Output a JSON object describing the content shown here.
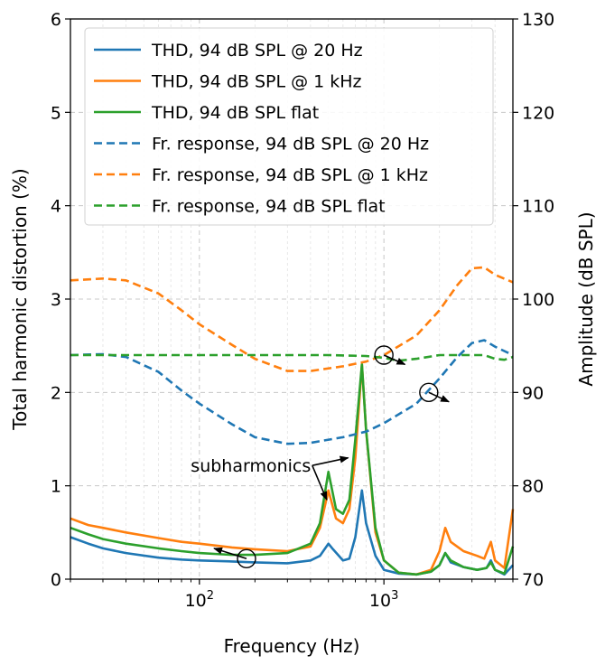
{
  "chart_data": {
    "type": "line",
    "xlabel": "Frequency (Hz)",
    "ylabel_left": "Total harmonic distortion (%)",
    "ylabel_right": "Amplitude (dB SPL)",
    "x_scale": "log",
    "xlim": [
      20,
      5000
    ],
    "ylim_left": [
      0,
      6
    ],
    "ylim_right": [
      70,
      130
    ],
    "x_ticks": [
      100,
      1000
    ],
    "y_ticks_left": [
      0,
      1,
      2,
      3,
      4,
      5,
      6
    ],
    "y_ticks_right": [
      70,
      80,
      90,
      100,
      110,
      120,
      130
    ],
    "grid": true,
    "legend_position": "top-left",
    "colors": {
      "blue": "#1f77b4",
      "orange": "#ff7f0e",
      "green": "#2ca02c"
    },
    "series": [
      {
        "name": "THD, 94 dB SPL @ 20 Hz",
        "axis": "left",
        "style": "solid",
        "color": "#1f77b4",
        "points": [
          [
            20,
            0.45
          ],
          [
            25,
            0.38
          ],
          [
            30,
            0.33
          ],
          [
            40,
            0.28
          ],
          [
            60,
            0.23
          ],
          [
            80,
            0.21
          ],
          [
            100,
            0.2
          ],
          [
            150,
            0.19
          ],
          [
            200,
            0.18
          ],
          [
            300,
            0.17
          ],
          [
            400,
            0.2
          ],
          [
            450,
            0.25
          ],
          [
            500,
            0.38
          ],
          [
            530,
            0.32
          ],
          [
            600,
            0.2
          ],
          [
            650,
            0.22
          ],
          [
            700,
            0.45
          ],
          [
            760,
            0.95
          ],
          [
            800,
            0.6
          ],
          [
            900,
            0.25
          ],
          [
            1000,
            0.1
          ],
          [
            1200,
            0.06
          ],
          [
            1500,
            0.05
          ],
          [
            1800,
            0.08
          ],
          [
            2000,
            0.15
          ],
          [
            2150,
            0.28
          ],
          [
            2300,
            0.18
          ],
          [
            2700,
            0.13
          ],
          [
            3200,
            0.1
          ],
          [
            3600,
            0.12
          ],
          [
            3800,
            0.2
          ],
          [
            4000,
            0.1
          ],
          [
            4500,
            0.05
          ],
          [
            5000,
            0.15
          ]
        ]
      },
      {
        "name": "THD, 94 dB SPL @ 1 kHz",
        "axis": "left",
        "style": "solid",
        "color": "#ff7f0e",
        "points": [
          [
            20,
            0.65
          ],
          [
            25,
            0.58
          ],
          [
            30,
            0.55
          ],
          [
            40,
            0.5
          ],
          [
            60,
            0.44
          ],
          [
            80,
            0.4
          ],
          [
            100,
            0.38
          ],
          [
            150,
            0.34
          ],
          [
            200,
            0.32
          ],
          [
            300,
            0.3
          ],
          [
            400,
            0.35
          ],
          [
            450,
            0.55
          ],
          [
            500,
            0.95
          ],
          [
            550,
            0.65
          ],
          [
            600,
            0.6
          ],
          [
            650,
            0.75
          ],
          [
            700,
            1.3
          ],
          [
            760,
            2.3
          ],
          [
            800,
            1.6
          ],
          [
            900,
            0.5
          ],
          [
            1000,
            0.2
          ],
          [
            1200,
            0.07
          ],
          [
            1500,
            0.05
          ],
          [
            1800,
            0.1
          ],
          [
            2000,
            0.3
          ],
          [
            2150,
            0.55
          ],
          [
            2300,
            0.4
          ],
          [
            2700,
            0.3
          ],
          [
            3200,
            0.25
          ],
          [
            3500,
            0.22
          ],
          [
            3800,
            0.4
          ],
          [
            4000,
            0.2
          ],
          [
            4500,
            0.12
          ],
          [
            5000,
            0.75
          ]
        ]
      },
      {
        "name": "THD, 94 dB SPL flat",
        "axis": "left",
        "style": "solid",
        "color": "#2ca02c",
        "points": [
          [
            20,
            0.55
          ],
          [
            25,
            0.48
          ],
          [
            30,
            0.43
          ],
          [
            40,
            0.38
          ],
          [
            60,
            0.33
          ],
          [
            80,
            0.3
          ],
          [
            100,
            0.28
          ],
          [
            150,
            0.26
          ],
          [
            200,
            0.26
          ],
          [
            300,
            0.28
          ],
          [
            400,
            0.38
          ],
          [
            450,
            0.6
          ],
          [
            500,
            1.15
          ],
          [
            550,
            0.75
          ],
          [
            600,
            0.7
          ],
          [
            650,
            0.85
          ],
          [
            700,
            1.5
          ],
          [
            760,
            2.3
          ],
          [
            800,
            1.6
          ],
          [
            900,
            0.55
          ],
          [
            1000,
            0.2
          ],
          [
            1200,
            0.07
          ],
          [
            1500,
            0.05
          ],
          [
            1800,
            0.08
          ],
          [
            2000,
            0.15
          ],
          [
            2150,
            0.28
          ],
          [
            2300,
            0.2
          ],
          [
            2700,
            0.13
          ],
          [
            3200,
            0.1
          ],
          [
            3600,
            0.12
          ],
          [
            3800,
            0.18
          ],
          [
            4000,
            0.1
          ],
          [
            4500,
            0.06
          ],
          [
            5000,
            0.35
          ]
        ]
      },
      {
        "name": "Fr. response, 94 dB SPL @ 20 Hz",
        "axis": "right",
        "style": "dashed",
        "color": "#1f77b4",
        "points": [
          [
            20,
            94
          ],
          [
            30,
            94.1
          ],
          [
            40,
            93.8
          ],
          [
            60,
            92.2
          ],
          [
            80,
            90.2
          ],
          [
            100,
            88.8
          ],
          [
            150,
            86.6
          ],
          [
            200,
            85.2
          ],
          [
            300,
            84.5
          ],
          [
            400,
            84.6
          ],
          [
            600,
            85.2
          ],
          [
            800,
            85.8
          ],
          [
            1000,
            86.7
          ],
          [
            1500,
            88.8
          ],
          [
            2000,
            91.5
          ],
          [
            2500,
            93.8
          ],
          [
            3000,
            95.3
          ],
          [
            3500,
            95.6
          ],
          [
            4000,
            94.9
          ],
          [
            5000,
            94
          ]
        ]
      },
      {
        "name": "Fr. response, 94 dB SPL @ 1 kHz",
        "axis": "right",
        "style": "dashed",
        "color": "#ff7f0e",
        "points": [
          [
            20,
            102
          ],
          [
            30,
            102.2
          ],
          [
            40,
            102
          ],
          [
            60,
            100.6
          ],
          [
            80,
            98.8
          ],
          [
            100,
            97.3
          ],
          [
            150,
            95.1
          ],
          [
            200,
            93.6
          ],
          [
            300,
            92.3
          ],
          [
            400,
            92.3
          ],
          [
            600,
            92.8
          ],
          [
            800,
            93.3
          ],
          [
            1000,
            94
          ],
          [
            1500,
            96.1
          ],
          [
            2000,
            98.8
          ],
          [
            2500,
            101.5
          ],
          [
            3000,
            103.3
          ],
          [
            3500,
            103.4
          ],
          [
            4000,
            102.6
          ],
          [
            5000,
            101.8
          ]
        ]
      },
      {
        "name": "Fr. response, 94 dB SPL flat",
        "axis": "right",
        "style": "dashed",
        "color": "#2ca02c",
        "points": [
          [
            20,
            94
          ],
          [
            50,
            94
          ],
          [
            100,
            94
          ],
          [
            200,
            94
          ],
          [
            500,
            94
          ],
          [
            800,
            93.9
          ],
          [
            1000,
            93.7
          ],
          [
            1200,
            93.4
          ],
          [
            1500,
            93.6
          ],
          [
            2000,
            94
          ],
          [
            3000,
            94
          ],
          [
            3500,
            94
          ],
          [
            4000,
            93.6
          ],
          [
            4500,
            93.5
          ],
          [
            5000,
            93.8
          ]
        ]
      }
    ],
    "annotations": [
      {
        "text": "subharmonics",
        "label_at": [
          190,
          1.15
        ],
        "arrows_to": [
          [
            490,
            0.85
          ],
          [
            640,
            1.3
          ]
        ]
      }
    ],
    "axis_markers": [
      {
        "circle_at": [
          180,
          0.22
        ],
        "arrow_to": [
          120,
          0.33
        ],
        "axis": "left"
      },
      {
        "circle_at": [
          1000,
          2.4
        ],
        "arrow_to": [
          1300,
          2.3
        ],
        "axis": "right"
      },
      {
        "circle_at": [
          1750,
          2.0
        ],
        "arrow_to": [
          2250,
          1.9
        ],
        "axis": "right"
      }
    ]
  }
}
